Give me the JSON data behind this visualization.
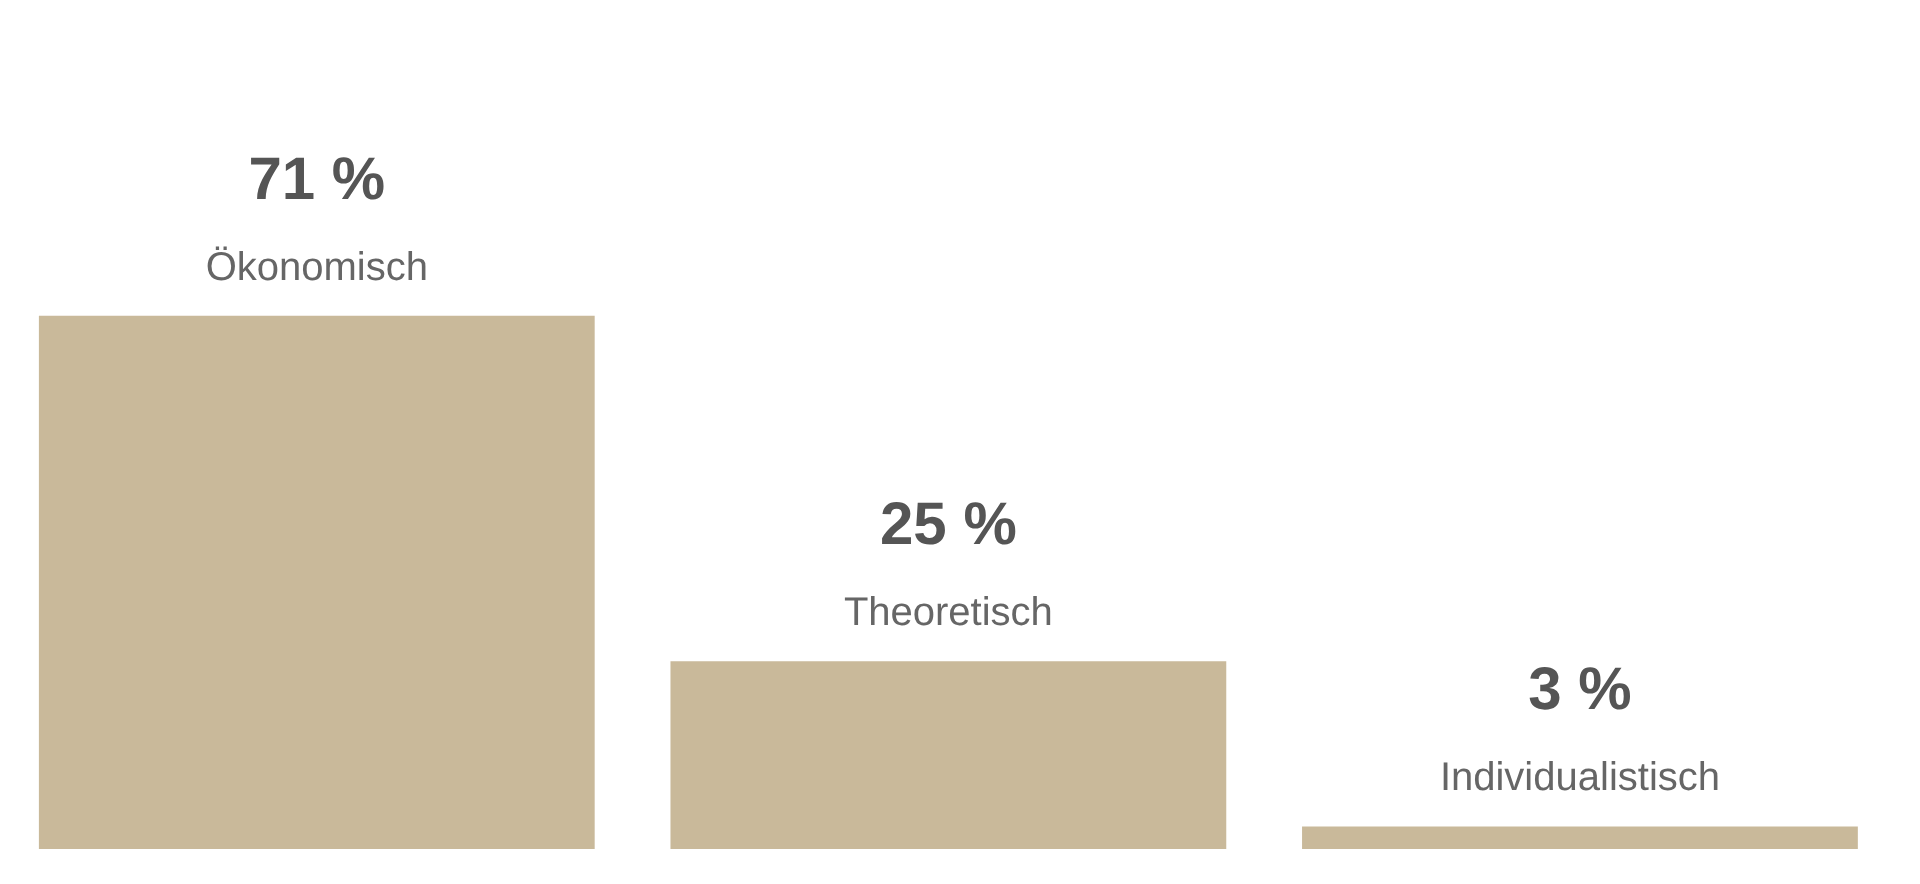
{
  "chart_data": {
    "type": "bar",
    "categories": [
      "Ökonomisch",
      "Theoretisch",
      "Individualistisch"
    ],
    "values": [
      71,
      25,
      3
    ],
    "color": "#c9b99a",
    "value_labels": [
      "71 %",
      "25 %",
      "3 %"
    ]
  }
}
